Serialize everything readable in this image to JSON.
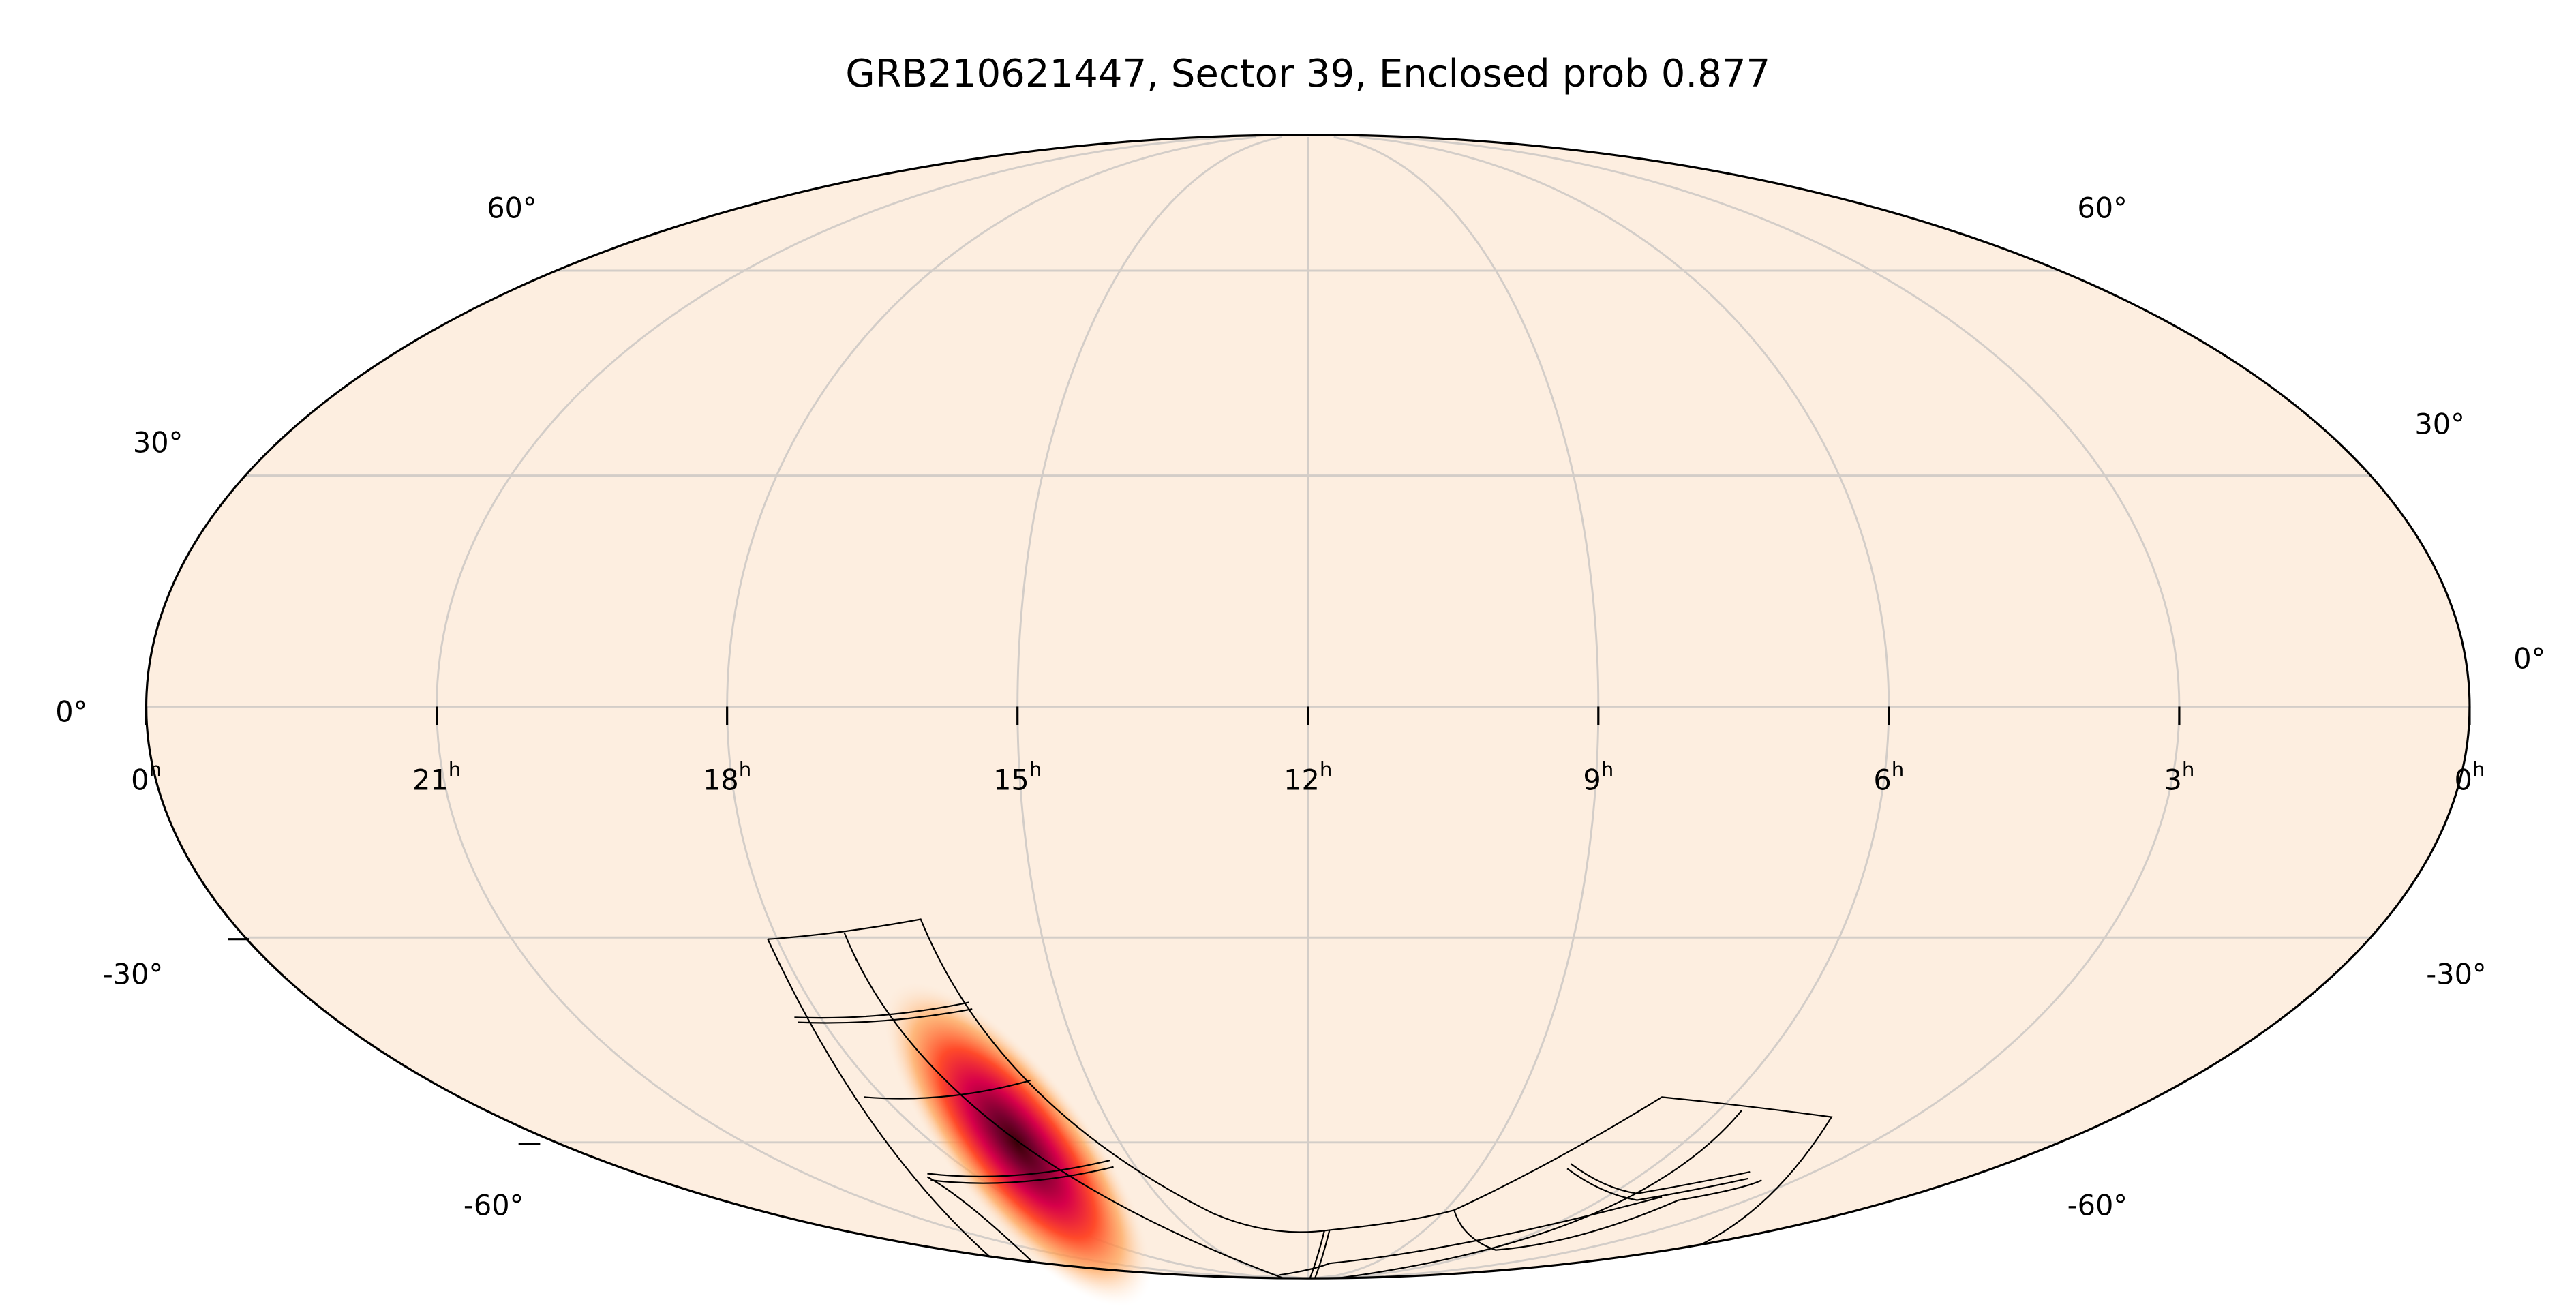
{
  "chart_data": {
    "type": "heatmap",
    "projection": "mollweide",
    "title": "GRB210621447, Sector 39, Enclosed prob 0.877",
    "ra_tick_labels": [
      {
        "ra_h": 24,
        "base": "0",
        "sup": "h"
      },
      {
        "ra_h": 21,
        "base": "21",
        "sup": "h"
      },
      {
        "ra_h": 18,
        "base": "18",
        "sup": "h"
      },
      {
        "ra_h": 15,
        "base": "15",
        "sup": "h"
      },
      {
        "ra_h": 12,
        "base": "12",
        "sup": "h"
      },
      {
        "ra_h": 9,
        "base": "9",
        "sup": "h"
      },
      {
        "ra_h": 6,
        "base": "6",
        "sup": "h"
      },
      {
        "ra_h": 3,
        "base": "3",
        "sup": "h"
      },
      {
        "ra_h": 0,
        "base": "0",
        "sup": "h"
      }
    ],
    "dec_tick_labels_left": [
      "60°",
      "30°",
      "0°",
      "-30°",
      "-60°"
    ],
    "dec_tick_labels_right": [
      "60°",
      "30°",
      "0°",
      "-30°",
      "-60°"
    ],
    "dec_gridlines_deg": [
      60,
      30,
      0,
      -30,
      -60
    ],
    "ra_gridlines_h": [
      21,
      18,
      15,
      12,
      9,
      6,
      3
    ],
    "grid": true,
    "probability_peak": {
      "ra_deg": 249,
      "dec_deg": -60
    },
    "colormap": "white-orange-red-black",
    "colors": {
      "background": "#fdeee0",
      "grid": "#d3cdc8",
      "footprint": "#000000",
      "peak": "#3a0008"
    }
  }
}
